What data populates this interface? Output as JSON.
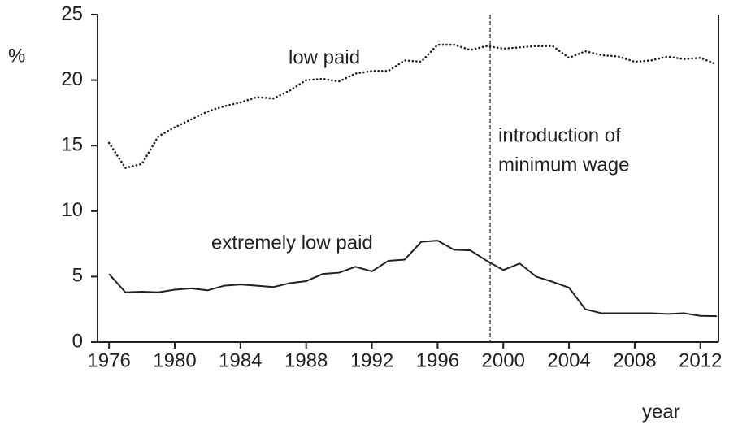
{
  "chart_data": {
    "type": "line",
    "y_label": "%",
    "x_label": "year",
    "x": [
      1976,
      1977,
      1978,
      1979,
      1980,
      1981,
      1982,
      1983,
      1984,
      1985,
      1986,
      1987,
      1988,
      1989,
      1990,
      1991,
      1992,
      1993,
      1994,
      1995,
      1996,
      1997,
      1998,
      1999,
      2000,
      2001,
      2002,
      2003,
      2004,
      2005,
      2006,
      2007,
      2008,
      2009,
      2010,
      2011,
      2012,
      2013
    ],
    "series": [
      {
        "name": "low paid",
        "color": "#231f20",
        "style": "dotted",
        "values": [
          15.2,
          13.3,
          13.6,
          15.7,
          16.4,
          17.0,
          17.6,
          18.0,
          18.3,
          18.7,
          18.6,
          19.2,
          20.0,
          20.1,
          19.9,
          20.5,
          20.7,
          20.7,
          21.5,
          21.4,
          22.7,
          22.7,
          22.3,
          22.6,
          22.4,
          22.5,
          22.6,
          22.6,
          21.7,
          22.2,
          21.9,
          21.8,
          21.4,
          21.5,
          21.8,
          21.6,
          21.7,
          21.2
        ]
      },
      {
        "name": "extremely low paid",
        "color": "#231f20",
        "style": "solid",
        "values": [
          5.2,
          3.8,
          3.85,
          3.8,
          4.0,
          4.1,
          3.95,
          4.3,
          4.4,
          4.3,
          4.2,
          4.5,
          4.65,
          5.2,
          5.3,
          5.75,
          5.4,
          6.2,
          6.3,
          7.65,
          7.75,
          7.05,
          7.0,
          6.2,
          5.5,
          6.0,
          5.0,
          4.6,
          4.15,
          2.5,
          2.2,
          2.2,
          2.2,
          2.2,
          2.15,
          2.2,
          2.0,
          1.98
        ]
      }
    ],
    "annotation": {
      "x": 1999.2,
      "lines": [
        "introduction of",
        "minimum wage"
      ]
    },
    "xlim": [
      1975.3,
      2013.1
    ],
    "xticks": [
      1976,
      1980,
      1984,
      1988,
      1992,
      1996,
      2000,
      2004,
      2008,
      2012
    ],
    "ylim": [
      0,
      25
    ],
    "yticks": [
      0,
      5,
      10,
      15,
      20,
      25
    ]
  }
}
